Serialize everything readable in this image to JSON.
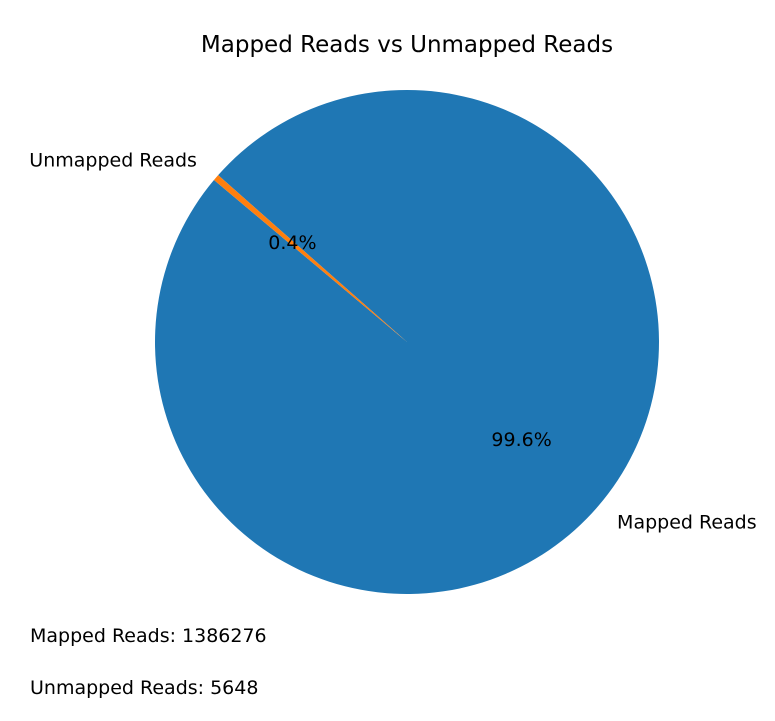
{
  "chart_data": {
    "type": "pie",
    "title": "Mapped Reads vs Unmapped Reads",
    "categories": [
      "Mapped Reads",
      "Unmapped Reads"
    ],
    "values": [
      1386276,
      5648
    ],
    "percent_labels": [
      "99.6%",
      "0.4%"
    ],
    "colors": [
      "#1f77b4",
      "#ff7f0e"
    ],
    "start_angle_deg": 140,
    "direction": "counterclockwise"
  },
  "counts": {
    "mapped": "Mapped Reads: 1386276",
    "unmapped": "Unmapped Reads: 5648"
  }
}
